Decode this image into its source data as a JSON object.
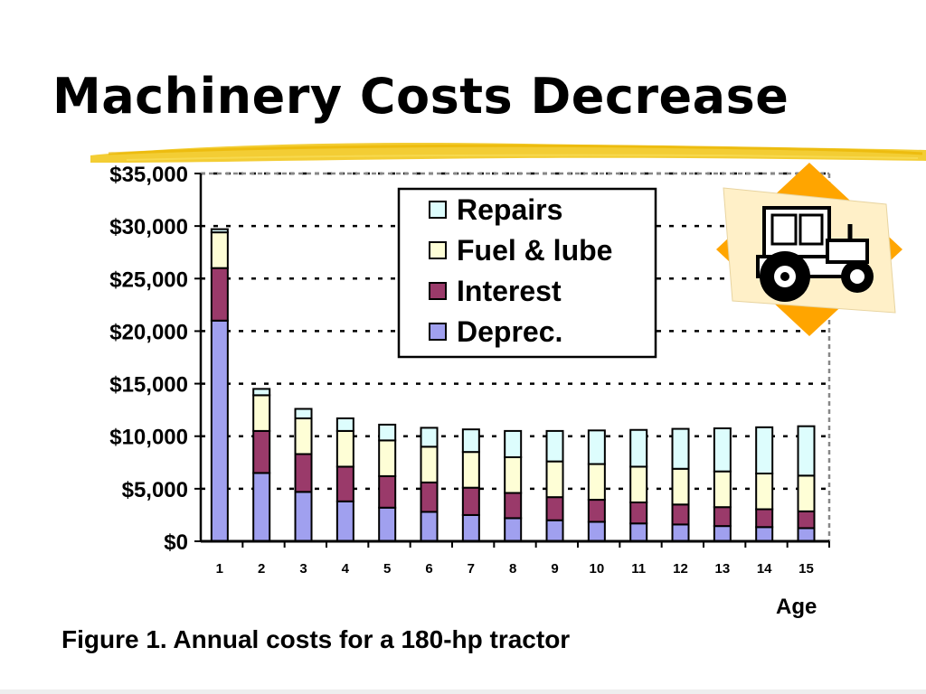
{
  "slide": {
    "title": "Machinery Costs Decrease",
    "caption": "Figure 1. Annual costs for a 180-hp tractor"
  },
  "clipart": {
    "icon": "tractor-icon",
    "accent_color": "#ffa500",
    "panel_color": "#fff0c8"
  },
  "colors": {
    "title_underline": "#f2c81e",
    "Repairs": "#ddfdfd",
    "Fuel & lube": "#fefed6",
    "Interest": "#9a3a6a",
    "Deprec.": "#a0a0ef"
  },
  "chart_data": {
    "type": "bar",
    "stacked": true,
    "xlabel": "Age",
    "ylabel": "",
    "ylim": [
      0,
      35000
    ],
    "y_ticks": [
      "$0",
      "$5,000",
      "$10,000",
      "$15,000",
      "$20,000",
      "$25,000",
      "$30,000",
      "$35,000"
    ],
    "y_tick_values": [
      0,
      5000,
      10000,
      15000,
      20000,
      25000,
      30000,
      35000
    ],
    "grid": "horizontal dashed",
    "legend_position": "top-center",
    "categories": [
      "1",
      "2",
      "3",
      "4",
      "5",
      "6",
      "7",
      "8",
      "9",
      "10",
      "11",
      "12",
      "13",
      "14",
      "15"
    ],
    "series": [
      {
        "name": "Deprec.",
        "values": [
          21000,
          6500,
          4700,
          3800,
          3200,
          2800,
          2500,
          2200,
          2000,
          1850,
          1700,
          1600,
          1450,
          1350,
          1250
        ]
      },
      {
        "name": "Interest",
        "values": [
          5000,
          4000,
          3600,
          3300,
          3000,
          2800,
          2600,
          2400,
          2200,
          2100,
          2000,
          1900,
          1800,
          1700,
          1600
        ]
      },
      {
        "name": "Fuel & lube",
        "values": [
          3400,
          3400,
          3400,
          3400,
          3400,
          3400,
          3400,
          3400,
          3400,
          3400,
          3400,
          3400,
          3400,
          3400,
          3400
        ]
      },
      {
        "name": "Repairs",
        "values": [
          300,
          600,
          900,
          1200,
          1500,
          1800,
          2150,
          2500,
          2900,
          3200,
          3500,
          3800,
          4100,
          4400,
          4700
        ]
      }
    ],
    "legend_order": [
      "Repairs",
      "Fuel & lube",
      "Interest",
      "Deprec."
    ]
  }
}
